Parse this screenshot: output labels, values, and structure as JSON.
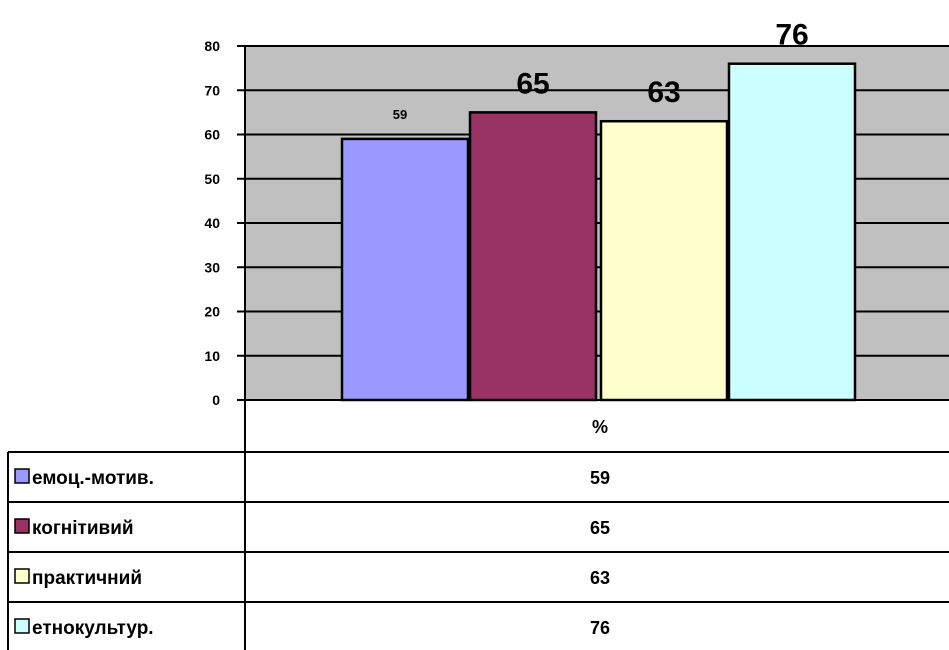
{
  "chart_data": {
    "type": "bar",
    "categories": [
      "%"
    ],
    "series": [
      {
        "name": "емоц.-мотив.",
        "values": [
          59
        ],
        "color": "#9999ff"
      },
      {
        "name": "когнітивий",
        "values": [
          65
        ],
        "color": "#993366"
      },
      {
        "name": "практичний",
        "values": [
          63
        ],
        "color": "#ffffcc"
      },
      {
        "name": "етнокультур.",
        "values": [
          76
        ],
        "color": "#ccffff"
      }
    ],
    "ylim": [
      0,
      80
    ],
    "yticks": [
      0,
      10,
      20,
      30,
      40,
      50,
      60,
      70,
      80
    ],
    "plot_background": "#c0c0c0",
    "grid": true,
    "legend": "data-table-below",
    "data_labels": [
      "59",
      "65",
      "63",
      "76"
    ],
    "table_header": "%",
    "table_values": [
      "59",
      "65",
      "63",
      "76"
    ]
  }
}
